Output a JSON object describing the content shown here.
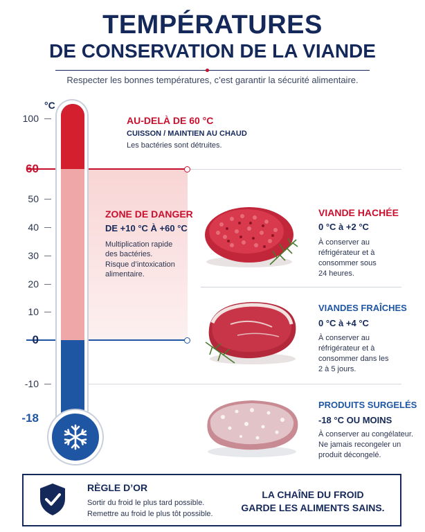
{
  "header": {
    "title_line1": "TEMPÉRATURES",
    "title_line2": "DE CONSERVATION DE LA VIANDE",
    "subtitle": "Respecter les bonnes températures, c’est garantir la sécurité alimentaire."
  },
  "scale": {
    "unit": "°C",
    "ticks": [
      "100",
      "60",
      "50",
      "40",
      "30",
      "20",
      "10",
      "0",
      "-10",
      "-18"
    ]
  },
  "hot_zone": {
    "title": "AU-DELÀ DE 60 °C",
    "subtitle": "CUISSON / MAINTIEN AU CHAUD",
    "text": "Les bactéries sont détruites."
  },
  "danger_zone": {
    "title": "ZONE DE DANGER",
    "range": "DE +10 °C À +60 °C",
    "line1": "Multiplication rapide",
    "line2": "des bactéries.",
    "line3": "Risque d’intoxication",
    "line4": "alimentaire."
  },
  "meats": [
    {
      "title": "VIANDE HACHÉE",
      "range": "0 °C à +2 °C",
      "lines": [
        "À conserver au",
        "réfrigérateur et à",
        "consommer sous",
        "24 heures."
      ]
    },
    {
      "title": "VIANDES FRAÎCHES",
      "range": "0 °C à +4 °C",
      "lines": [
        "À conserver au",
        "réfrigérateur et à",
        "consommer dans les",
        "2 à 5 jours."
      ]
    },
    {
      "title": "PRODUITS SURGELÉS",
      "range": "-18 °C OU MOINS",
      "lines": [
        "À conserver au congélateur.",
        "Ne jamais recongeler un",
        "produit décongelé."
      ]
    }
  ],
  "footer": {
    "rule_title": "RÈGLE D’OR",
    "rule_line1": "Sortir du froid le plus tard possible.",
    "rule_line2": "Remettre au froid le plus tôt possible.",
    "slogan_line1": "LA CHAÎNE DU FROID",
    "slogan_line2": "GARDE LES ALIMENTS SAINS."
  },
  "colors": {
    "navy": "#14285a",
    "red": "#c8102e",
    "blue": "#1f56a3",
    "danger_pink": "#f3b2b2"
  },
  "icons": [
    "snowflake-icon",
    "shield-check-icon",
    "rosemary-icon"
  ]
}
